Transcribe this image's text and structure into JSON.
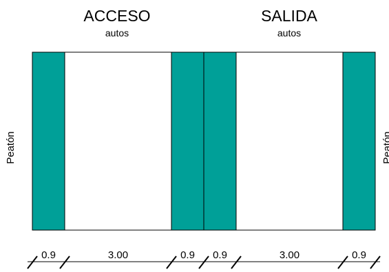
{
  "titles": [
    {
      "label": "ACCESO",
      "sub": "autos"
    },
    {
      "label": "SALIDA",
      "sub": "autos"
    }
  ],
  "side_labels": [
    "Peatón",
    "Peatón"
  ],
  "dimensions": [
    "0.9",
    "3.00",
    "0.9",
    "0.9",
    "3.00",
    "0.9"
  ]
}
